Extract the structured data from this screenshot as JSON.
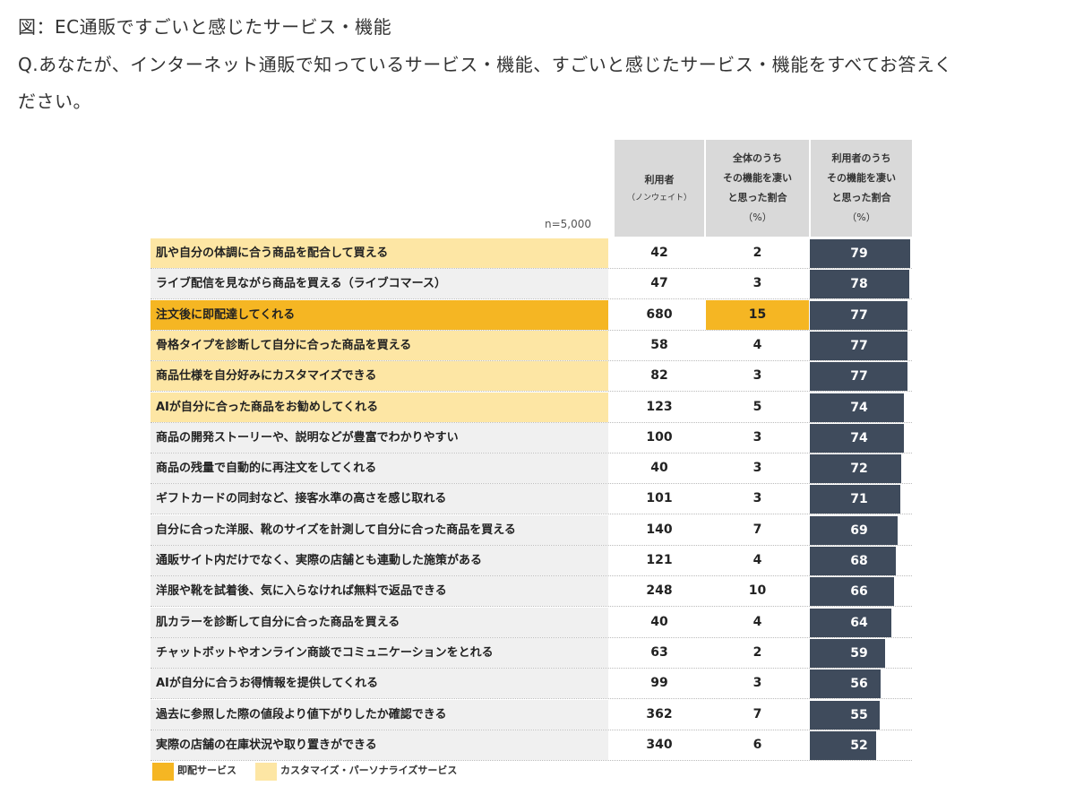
{
  "caption_title": "図：EC通販ですごいと感じたサービス・機能",
  "question_line1": "Q.あなたが、インターネット通販で知っているサービス・機能、すごいと感じたサービス・機能をすべてお答えく",
  "question_line2": "ださい。",
  "n_label": "n=5,000",
  "columns": {
    "users": {
      "title": "利用者",
      "sub": "（ノンウェイト）"
    },
    "all_pct": {
      "line1": "全体のうち",
      "line2": "その機能を凄い",
      "line3": "と思った割合",
      "line4": "（%）"
    },
    "users_pct": {
      "line1": "利用者のうち",
      "line2": "その機能を凄い",
      "line3": "と思った割合",
      "line4": "（%）"
    }
  },
  "legend": {
    "instant": "即配サービス",
    "custom": "カスタマイズ・パーソナライズサービス"
  },
  "colors": {
    "instant": "#f5b623",
    "custom": "#fde6a4",
    "plain": "#f0f0f0",
    "bar": "#3f4b5c",
    "header": "#d9d9d9"
  },
  "chart_data": {
    "type": "table",
    "x_max": 79,
    "rows": [
      {
        "label": "肌や自分の体調に合う商品を配合して買える",
        "users": 42,
        "all_pct": 2,
        "users_pct": 79,
        "category": "custom"
      },
      {
        "label": "ライブ配信を見ながら商品を買える（ライブコマース）",
        "users": 47,
        "all_pct": 3,
        "users_pct": 78,
        "category": "none"
      },
      {
        "label": "注文後に即配達してくれる",
        "users": 680,
        "all_pct": 15,
        "users_pct": 77,
        "category": "instant"
      },
      {
        "label": "骨格タイプを診断して自分に合った商品を買える",
        "users": 58,
        "all_pct": 4,
        "users_pct": 77,
        "category": "custom"
      },
      {
        "label": "商品仕様を自分好みにカスタマイズできる",
        "users": 82,
        "all_pct": 3,
        "users_pct": 77,
        "category": "custom"
      },
      {
        "label": "AIが自分に合った商品をお勧めしてくれる",
        "users": 123,
        "all_pct": 5,
        "users_pct": 74,
        "category": "custom"
      },
      {
        "label": "商品の開発ストーリーや、説明などが豊富でわかりやすい",
        "users": 100,
        "all_pct": 3,
        "users_pct": 74,
        "category": "none"
      },
      {
        "label": "商品の残量で自動的に再注文をしてくれる",
        "users": 40,
        "all_pct": 3,
        "users_pct": 72,
        "category": "none"
      },
      {
        "label": "ギフトカードの同封など、接客水準の高さを感じ取れる",
        "users": 101,
        "all_pct": 3,
        "users_pct": 71,
        "category": "none"
      },
      {
        "label": "自分に合った洋服、靴のサイズを計測して自分に合った商品を買える",
        "users": 140,
        "all_pct": 7,
        "users_pct": 69,
        "category": "none"
      },
      {
        "label": "通販サイト内だけでなく、実際の店舗とも連動した施策がある",
        "users": 121,
        "all_pct": 4,
        "users_pct": 68,
        "category": "none"
      },
      {
        "label": "洋服や靴を試着後、気に入らなければ無料で返品できる",
        "users": 248,
        "all_pct": 10,
        "users_pct": 66,
        "category": "none"
      },
      {
        "label": "肌カラーを診断して自分に合った商品を買える",
        "users": 40,
        "all_pct": 4,
        "users_pct": 64,
        "category": "none"
      },
      {
        "label": "チャットボットやオンライン商談でコミュニケーションをとれる",
        "users": 63,
        "all_pct": 2,
        "users_pct": 59,
        "category": "none"
      },
      {
        "label": "AIが自分に合うお得情報を提供してくれる",
        "users": 99,
        "all_pct": 3,
        "users_pct": 56,
        "category": "none"
      },
      {
        "label": "過去に参照した際の値段より値下がりしたか確認できる",
        "users": 362,
        "all_pct": 7,
        "users_pct": 55,
        "category": "none"
      },
      {
        "label": "実際の店舗の在庫状況や取り置きができる",
        "users": 340,
        "all_pct": 6,
        "users_pct": 52,
        "category": "none"
      }
    ]
  }
}
